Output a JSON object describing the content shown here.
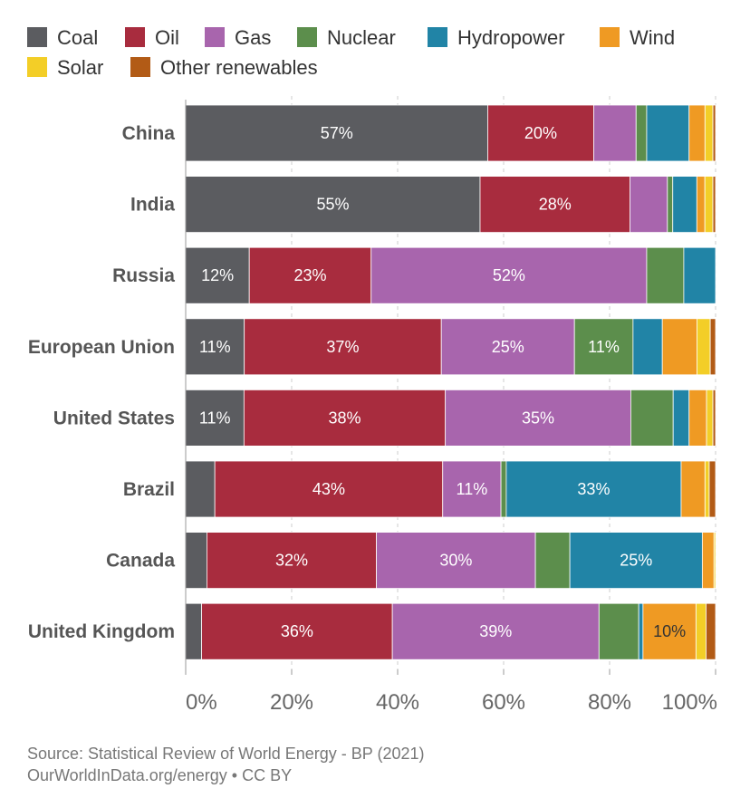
{
  "chart_data": {
    "type": "bar",
    "orientation": "horizontal",
    "stacked": true,
    "title": "",
    "xlabel": "",
    "ylabel": "",
    "xlim": [
      0,
      100
    ],
    "x_ticks": [
      0,
      20,
      40,
      60,
      80,
      100
    ],
    "x_tick_labels": [
      "0%",
      "20%",
      "40%",
      "60%",
      "80%",
      "100%"
    ],
    "grid": "vertical dashed",
    "legend_position": "top",
    "categories": [
      "China",
      "India",
      "Russia",
      "European Union",
      "United States",
      "Brazil",
      "Canada",
      "United Kingdom"
    ],
    "series": [
      {
        "name": "Coal",
        "color": "#5b5c60",
        "values": [
          57,
          55,
          12,
          11,
          11,
          5.5,
          4,
          3
        ]
      },
      {
        "name": "Oil",
        "color": "#a82c3e",
        "values": [
          20,
          28,
          23,
          37,
          38,
          43,
          32,
          36
        ]
      },
      {
        "name": "Gas",
        "color": "#a865ad",
        "values": [
          8,
          7,
          52,
          25,
          35,
          11,
          30,
          39
        ]
      },
      {
        "name": "Nuclear",
        "color": "#5c8e4c",
        "values": [
          2,
          1,
          7,
          11,
          8,
          1,
          6.5,
          7.5
        ]
      },
      {
        "name": "Hydropower",
        "color": "#2184a6",
        "values": [
          8,
          4.5,
          6,
          5.5,
          3,
          33,
          25,
          0.8
        ]
      },
      {
        "name": "Wind",
        "color": "#ef9a23",
        "values": [
          3,
          1.5,
          0,
          6.5,
          3.3,
          4.5,
          2.2,
          10
        ]
      },
      {
        "name": "Solar",
        "color": "#f3ce27",
        "values": [
          1.5,
          1.5,
          0,
          2.5,
          1.2,
          0.8,
          0.3,
          1.9
        ]
      },
      {
        "name": "Other renewables",
        "color": "#b25b16",
        "values": [
          0.5,
          0.5,
          0,
          1,
          0.5,
          1.2,
          0,
          1.8
        ]
      }
    ],
    "data_labels": [
      {
        "category": "China",
        "series": "Coal",
        "label": "57%"
      },
      {
        "category": "China",
        "series": "Oil",
        "label": "20%"
      },
      {
        "category": "India",
        "series": "Coal",
        "label": "55%"
      },
      {
        "category": "India",
        "series": "Oil",
        "label": "28%"
      },
      {
        "category": "Russia",
        "series": "Coal",
        "label": "12%"
      },
      {
        "category": "Russia",
        "series": "Oil",
        "label": "23%"
      },
      {
        "category": "Russia",
        "series": "Gas",
        "label": "52%"
      },
      {
        "category": "European Union",
        "series": "Coal",
        "label": "11%"
      },
      {
        "category": "European Union",
        "series": "Oil",
        "label": "37%"
      },
      {
        "category": "European Union",
        "series": "Gas",
        "label": "25%"
      },
      {
        "category": "European Union",
        "series": "Nuclear",
        "label": "11%"
      },
      {
        "category": "United States",
        "series": "Coal",
        "label": "11%"
      },
      {
        "category": "United States",
        "series": "Oil",
        "label": "38%"
      },
      {
        "category": "United States",
        "series": "Gas",
        "label": "35%"
      },
      {
        "category": "Brazil",
        "series": "Oil",
        "label": "43%"
      },
      {
        "category": "Brazil",
        "series": "Gas",
        "label": "11%"
      },
      {
        "category": "Brazil",
        "series": "Hydropower",
        "label": "33%"
      },
      {
        "category": "Canada",
        "series": "Oil",
        "label": "32%"
      },
      {
        "category": "Canada",
        "series": "Gas",
        "label": "30%"
      },
      {
        "category": "Canada",
        "series": "Hydropower",
        "label": "25%"
      },
      {
        "category": "United Kingdom",
        "series": "Oil",
        "label": "36%"
      },
      {
        "category": "United Kingdom",
        "series": "Gas",
        "label": "39%"
      },
      {
        "category": "United Kingdom",
        "series": "Wind",
        "label": "10%"
      }
    ]
  },
  "source": {
    "line1": "Source: Statistical Review of World Energy - BP (2021)",
    "line2": "OurWorldInData.org/energy • CC BY"
  }
}
